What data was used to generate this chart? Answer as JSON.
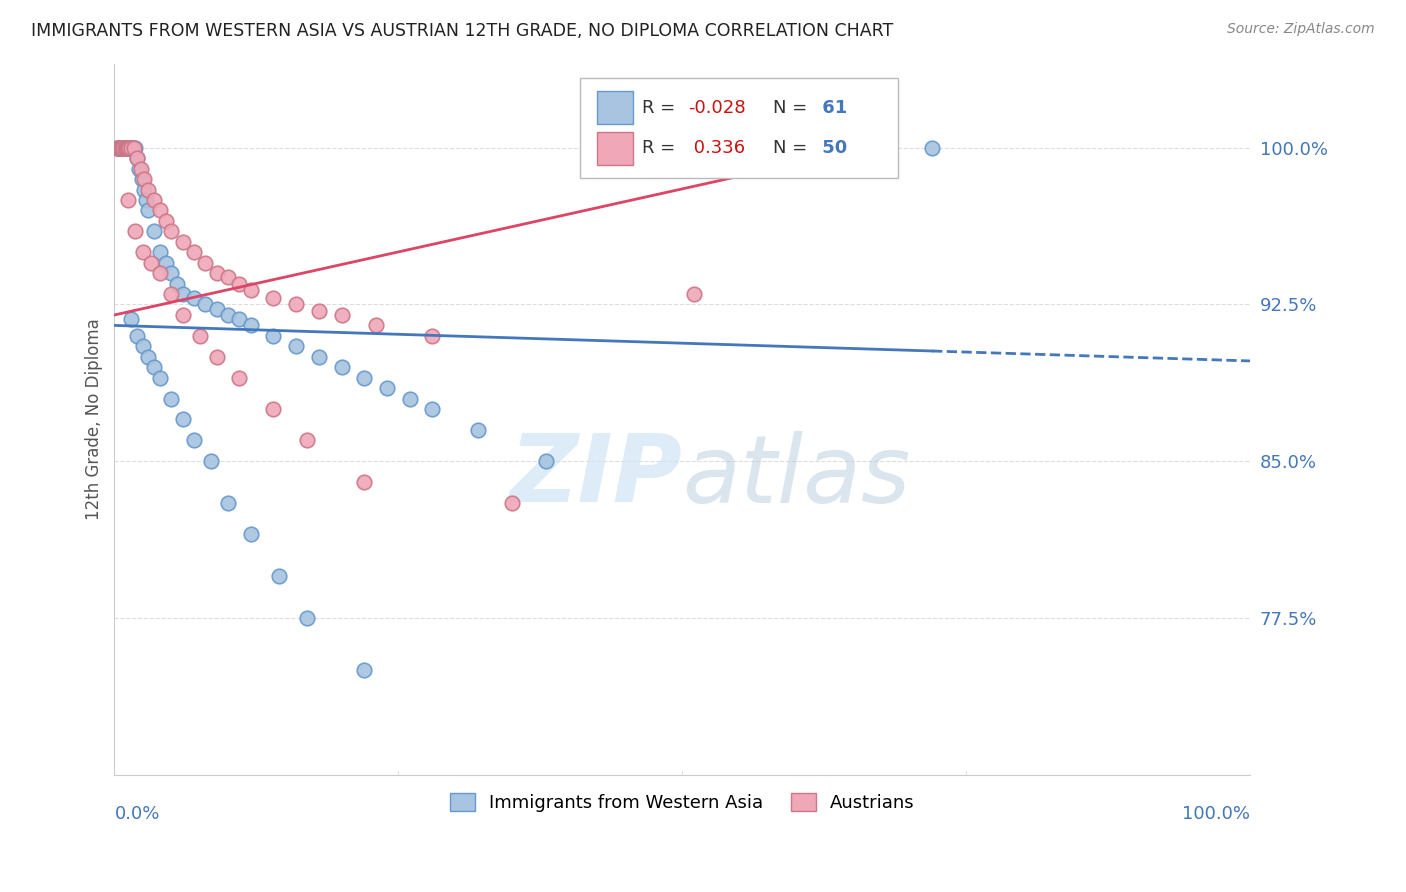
{
  "title": "IMMIGRANTS FROM WESTERN ASIA VS AUSTRIAN 12TH GRADE, NO DIPLOMA CORRELATION CHART",
  "source": "Source: ZipAtlas.com",
  "ylabel": "12th Grade, No Diploma",
  "yticks": [
    77.5,
    85.0,
    92.5,
    100.0
  ],
  "ytick_labels": [
    "77.5%",
    "85.0%",
    "92.5%",
    "100.0%"
  ],
  "xlim": [
    0.0,
    1.0
  ],
  "ylim": [
    70.0,
    104.0
  ],
  "R_blue": "-0.028",
  "N_blue": "61",
  "R_pink": "0.336",
  "N_pink": "50",
  "blue_scatter_x": [
    0.002,
    0.003,
    0.004,
    0.005,
    0.006,
    0.007,
    0.008,
    0.009,
    0.01,
    0.011,
    0.012,
    0.013,
    0.014,
    0.015,
    0.016,
    0.017,
    0.018,
    0.02,
    0.022,
    0.024,
    0.026,
    0.028,
    0.03,
    0.035,
    0.04,
    0.045,
    0.05,
    0.055,
    0.06,
    0.07,
    0.08,
    0.09,
    0.1,
    0.11,
    0.12,
    0.14,
    0.16,
    0.18,
    0.2,
    0.22,
    0.24,
    0.26,
    0.28,
    0.32,
    0.38,
    0.015,
    0.02,
    0.025,
    0.03,
    0.035,
    0.04,
    0.05,
    0.06,
    0.07,
    0.085,
    0.1,
    0.12,
    0.145,
    0.17,
    0.22,
    0.72
  ],
  "blue_scatter_y": [
    100.0,
    100.0,
    100.0,
    100.0,
    100.0,
    100.0,
    100.0,
    100.0,
    100.0,
    100.0,
    100.0,
    100.0,
    100.0,
    100.0,
    100.0,
    100.0,
    100.0,
    99.5,
    99.0,
    98.5,
    98.0,
    97.5,
    97.0,
    96.0,
    95.0,
    94.5,
    94.0,
    93.5,
    93.0,
    92.8,
    92.5,
    92.3,
    92.0,
    91.8,
    91.5,
    91.0,
    90.5,
    90.0,
    89.5,
    89.0,
    88.5,
    88.0,
    87.5,
    86.5,
    85.0,
    91.8,
    91.0,
    90.5,
    90.0,
    89.5,
    89.0,
    88.0,
    87.0,
    86.0,
    85.0,
    83.0,
    81.5,
    79.5,
    77.5,
    75.0,
    100.0
  ],
  "pink_scatter_x": [
    0.002,
    0.003,
    0.004,
    0.005,
    0.006,
    0.007,
    0.008,
    0.009,
    0.01,
    0.011,
    0.012,
    0.013,
    0.015,
    0.017,
    0.02,
    0.023,
    0.026,
    0.03,
    0.035,
    0.04,
    0.045,
    0.05,
    0.06,
    0.07,
    0.08,
    0.09,
    0.1,
    0.11,
    0.12,
    0.14,
    0.16,
    0.18,
    0.2,
    0.23,
    0.28,
    0.012,
    0.018,
    0.025,
    0.032,
    0.04,
    0.05,
    0.06,
    0.075,
    0.09,
    0.11,
    0.14,
    0.17,
    0.22,
    0.35,
    0.51
  ],
  "pink_scatter_y": [
    100.0,
    100.0,
    100.0,
    100.0,
    100.0,
    100.0,
    100.0,
    100.0,
    100.0,
    100.0,
    100.0,
    100.0,
    100.0,
    100.0,
    99.5,
    99.0,
    98.5,
    98.0,
    97.5,
    97.0,
    96.5,
    96.0,
    95.5,
    95.0,
    94.5,
    94.0,
    93.8,
    93.5,
    93.2,
    92.8,
    92.5,
    92.2,
    92.0,
    91.5,
    91.0,
    97.5,
    96.0,
    95.0,
    94.5,
    94.0,
    93.0,
    92.0,
    91.0,
    90.0,
    89.0,
    87.5,
    86.0,
    84.0,
    83.0,
    93.0
  ],
  "blue_color": "#a8c4e0",
  "blue_edge_color": "#6699cc",
  "pink_color": "#f0a8b8",
  "pink_edge_color": "#cc7788",
  "blue_line_color": "#4477bb",
  "pink_line_color": "#dd4466",
  "watermark_color": "#d0e4f5",
  "ytick_color": "#4477bb",
  "xtick_color": "#4477bb",
  "grid_color": "#dddddd",
  "title_color": "#222222",
  "source_color": "#888888",
  "ylabel_color": "#555555"
}
